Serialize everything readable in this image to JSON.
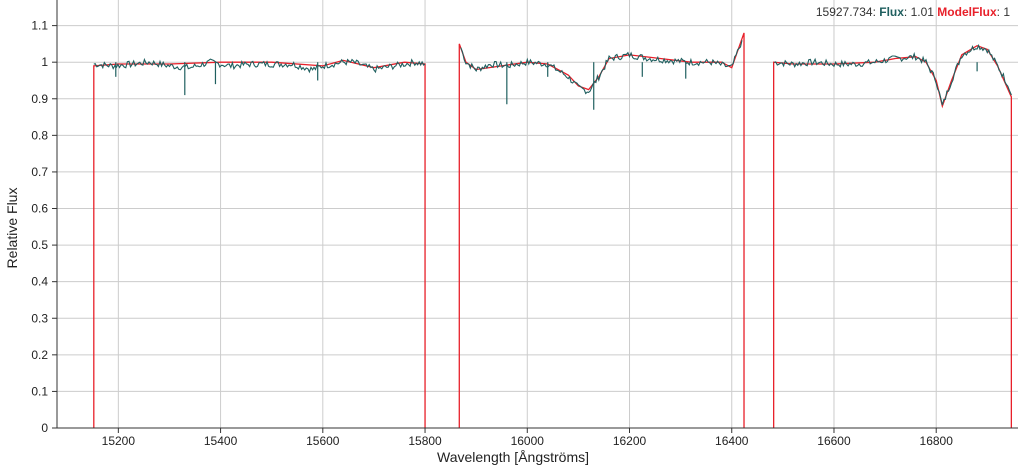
{
  "legend": {
    "cursor_x": "15927.734",
    "sep": ": ",
    "flux_label": "Flux",
    "flux_value": "1.01",
    "model_label": "ModelFlux",
    "model_value": "1",
    "flux_color": "#1f5f5f",
    "model_color": "#e8202a"
  },
  "chart_data": {
    "type": "line",
    "xlabel": "Wavelength [Ångströms]",
    "ylabel": "Relative Flux",
    "xlim": [
      15080,
      16960
    ],
    "ylim": [
      0,
      1.17
    ],
    "grid": true,
    "x_ticks": [
      "15200",
      "15400",
      "15600",
      "15800",
      "16000",
      "16200",
      "16400",
      "16600",
      "16800"
    ],
    "y_ticks": [
      "0",
      "0.1",
      "0.2",
      "0.3",
      "0.4",
      "0.5",
      "0.6",
      "0.7",
      "0.8",
      "0.9",
      "1",
      "1.1"
    ],
    "series": [
      {
        "name": "Flux",
        "color": "#1f5f5f",
        "segments": [
          {
            "x": [
              15152,
              15190,
              15230,
              15260,
              15300,
              15340,
              15380,
              15420,
              15460,
              15500,
              15540,
              15580,
              15600,
              15640,
              15660,
              15700,
              15740,
              15780,
              15800
            ],
            "y": [
              0.995,
              0.99,
              0.995,
              1.0,
              0.99,
              0.985,
              1.0,
              0.99,
              0.995,
              0.995,
              0.995,
              0.98,
              0.99,
              1.0,
              1.0,
              0.98,
              0.99,
              1.0,
              0.995
            ]
          },
          {
            "x": [
              15870,
              15880,
              15900,
              15930,
              15960,
              16000,
              16040,
              16080,
              16100,
              16120,
              16140,
              16160,
              16200,
              16240,
              16280,
              16320,
              16360,
              16400,
              16420
            ],
            "y": [
              1.04,
              1.0,
              0.98,
              0.995,
              0.99,
              1.0,
              0.995,
              0.96,
              0.93,
              0.92,
              0.96,
              1.01,
              1.02,
              1.01,
              1.005,
              1.0,
              1.0,
              0.985,
              1.06
            ]
          },
          {
            "x": [
              16483,
              16520,
              16560,
              16600,
              16640,
              16680,
              16720,
              16760,
              16780,
              16800,
              16812,
              16830,
              16850,
              16880,
              16900,
              16920,
              16940,
              16947
            ],
            "y": [
              1.0,
              0.995,
              1.0,
              0.995,
              0.995,
              1.0,
              1.01,
              1.015,
              1.0,
              0.95,
              0.88,
              0.95,
              1.02,
              1.045,
              1.035,
              0.99,
              0.94,
              0.91
            ]
          }
        ],
        "absorption_lines": [
          {
            "x": 15195,
            "y": 0.96
          },
          {
            "x": 15330,
            "y": 0.91
          },
          {
            "x": 15390,
            "y": 0.94
          },
          {
            "x": 15590,
            "y": 0.95
          },
          {
            "x": 15960,
            "y": 0.885
          },
          {
            "x": 16040,
            "y": 0.96
          },
          {
            "x": 16130,
            "y": 0.87
          },
          {
            "x": 16225,
            "y": 0.96
          },
          {
            "x": 16310,
            "y": 0.955
          },
          {
            "x": 16880,
            "y": 0.975
          }
        ]
      },
      {
        "name": "ModelFlux",
        "color": "#e8202a",
        "segments": [
          {
            "x": [
              15152,
              15152,
              15200,
              15300,
              15400,
              15500,
              15600,
              15640,
              15700,
              15760,
              15800,
              15800
            ],
            "y": [
              0,
              0.99,
              0.995,
              0.995,
              1.0,
              1.0,
              0.99,
              1.005,
              0.985,
              1.0,
              0.995,
              0
            ]
          },
          {
            "x": [
              15867,
              15867,
              15880,
              15900,
              15950,
              16000,
              16040,
              16080,
              16100,
              16120,
              16140,
              16160,
              16200,
              16260,
              16320,
              16380,
              16400,
              16424,
              16424
            ],
            "y": [
              0,
              1.05,
              1.0,
              0.98,
              0.99,
              1.0,
              0.995,
              0.965,
              0.935,
              0.925,
              0.96,
              1.01,
              1.02,
              1.01,
              1.0,
              1.0,
              0.985,
              1.08,
              0
            ]
          },
          {
            "x": [
              16482,
              16482,
              16520,
              16600,
              16680,
              16720,
              16760,
              16780,
              16800,
              16812,
              16830,
              16850,
              16880,
              16900,
              16920,
              16947,
              16947
            ],
            "y": [
              0,
              1.0,
              0.995,
              0.995,
              1.0,
              1.01,
              1.015,
              1.0,
              0.95,
              0.88,
              0.95,
              1.02,
              1.045,
              1.035,
              0.99,
              0.905,
              0
            ]
          }
        ]
      }
    ]
  }
}
